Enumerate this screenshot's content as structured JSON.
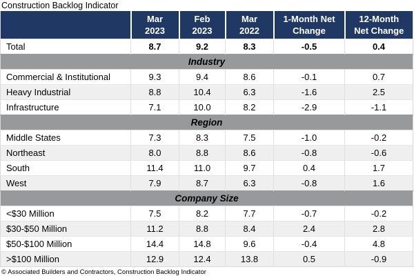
{
  "colors": {
    "header_bg": "#1F3864",
    "band_bg": "#98999B",
    "alt_row_bg": "#EFEFEF",
    "header_text": "#FFFFFF",
    "body_text": "#000000"
  },
  "chart_data": {
    "type": "table",
    "title": "Construction Backlog Indicator",
    "footer": "© Associated Builders and Contractors, Construction Backlog Indicator",
    "columns": [
      {
        "label": "Mar 2023",
        "lines": [
          "Mar",
          "2023"
        ]
      },
      {
        "label": "Feb 2023",
        "lines": [
          "Feb",
          "2023"
        ]
      },
      {
        "label": "Mar 2022",
        "lines": [
          "Mar",
          "2022"
        ]
      },
      {
        "label": "1-Month Net Change",
        "lines": [
          "1-Month Net",
          "Change"
        ]
      },
      {
        "label": "12-Month Net Change",
        "lines": [
          "12-Month",
          "Net Change"
        ]
      }
    ],
    "total_row": {
      "label": "Total",
      "values": [
        "8.7",
        "9.2",
        "8.3",
        "-0.5",
        "0.4"
      ]
    },
    "sections": [
      {
        "name": "Industry",
        "rows": [
          {
            "label": "Commercial & Institutional",
            "values": [
              "9.3",
              "9.4",
              "8.6",
              "-0.1",
              "0.7"
            ]
          },
          {
            "label": "Heavy Industrial",
            "values": [
              "8.8",
              "10.4",
              "6.3",
              "-1.6",
              "2.5"
            ]
          },
          {
            "label": "Infrastructure",
            "values": [
              "7.1",
              "10.0",
              "8.2",
              "-2.9",
              "-1.1"
            ]
          }
        ]
      },
      {
        "name": "Region",
        "rows": [
          {
            "label": "Middle States",
            "values": [
              "7.3",
              "8.3",
              "7.5",
              "-1.0",
              "-0.2"
            ]
          },
          {
            "label": "Northeast",
            "values": [
              "8.0",
              "8.8",
              "8.6",
              "-0.8",
              "-0.6"
            ]
          },
          {
            "label": "South",
            "values": [
              "11.4",
              "11.0",
              "9.7",
              "0.4",
              "1.7"
            ]
          },
          {
            "label": "West",
            "values": [
              "7.9",
              "8.7",
              "6.3",
              "-0.8",
              "1.6"
            ]
          }
        ]
      },
      {
        "name": "Company Size",
        "rows": [
          {
            "label": "<$30 Million",
            "values": [
              "7.5",
              "8.2",
              "7.7",
              "-0.7",
              "-0.2"
            ]
          },
          {
            "label": "$30-$50 Million",
            "values": [
              "11.2",
              "8.8",
              "8.4",
              "2.4",
              "2.8"
            ]
          },
          {
            "label": "$50-$100 Million",
            "values": [
              "14.4",
              "14.8",
              "9.6",
              "-0.4",
              "4.8"
            ]
          },
          {
            "label": ">$100 Million",
            "values": [
              "12.9",
              "12.4",
              "13.8",
              "0.5",
              "-0.9"
            ]
          }
        ]
      }
    ]
  }
}
